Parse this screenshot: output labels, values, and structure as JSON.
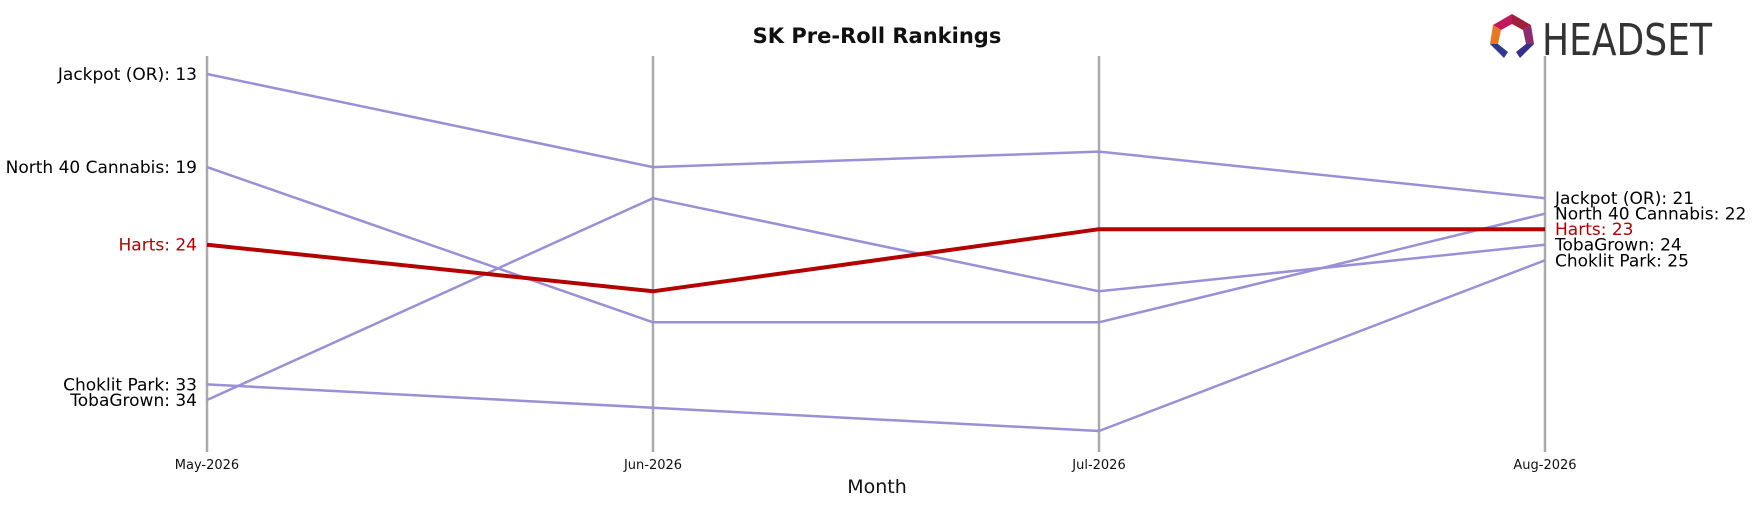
{
  "chart_data": {
    "type": "line",
    "title": "SK Pre-Roll Rankings",
    "xlabel": "Month",
    "ylabel": "",
    "categories": [
      "May-2026",
      "Jun-2026",
      "Jul-2026",
      "Aug-2026"
    ],
    "y_inverted": true,
    "ylim": [
      12,
      38
    ],
    "grid": "vertical lines at each month",
    "highlight_color": "#b30000",
    "series_color": "#9b8fd6",
    "series": [
      {
        "name": "Jackpot (OR)",
        "values": [
          13,
          19,
          18,
          21
        ],
        "start_label": "Jackpot (OR): 13",
        "end_label": "Jackpot (OR): 21",
        "highlight": false
      },
      {
        "name": "North 40 Cannabis",
        "values": [
          19,
          29,
          29,
          22
        ],
        "start_label": "North 40 Cannabis: 19",
        "end_label": "North 40 Cannabis: 22",
        "highlight": false
      },
      {
        "name": "Harts",
        "values": [
          24,
          27,
          23,
          23
        ],
        "start_label": "Harts: 24",
        "end_label": "Harts: 23",
        "highlight": true
      },
      {
        "name": "TobaGrown",
        "values": [
          34,
          21,
          27,
          24
        ],
        "start_label": "TobaGrown: 34",
        "end_label": "TobaGrown: 24",
        "highlight": false
      },
      {
        "name": "Choklit Park",
        "values": [
          33,
          34.5,
          36,
          25
        ],
        "start_label": "Choklit Park: 33",
        "end_label": "Choklit Park: 25",
        "highlight": false
      }
    ]
  },
  "logo": {
    "text": "HEADSET",
    "icon": "headset-logo-icon"
  }
}
